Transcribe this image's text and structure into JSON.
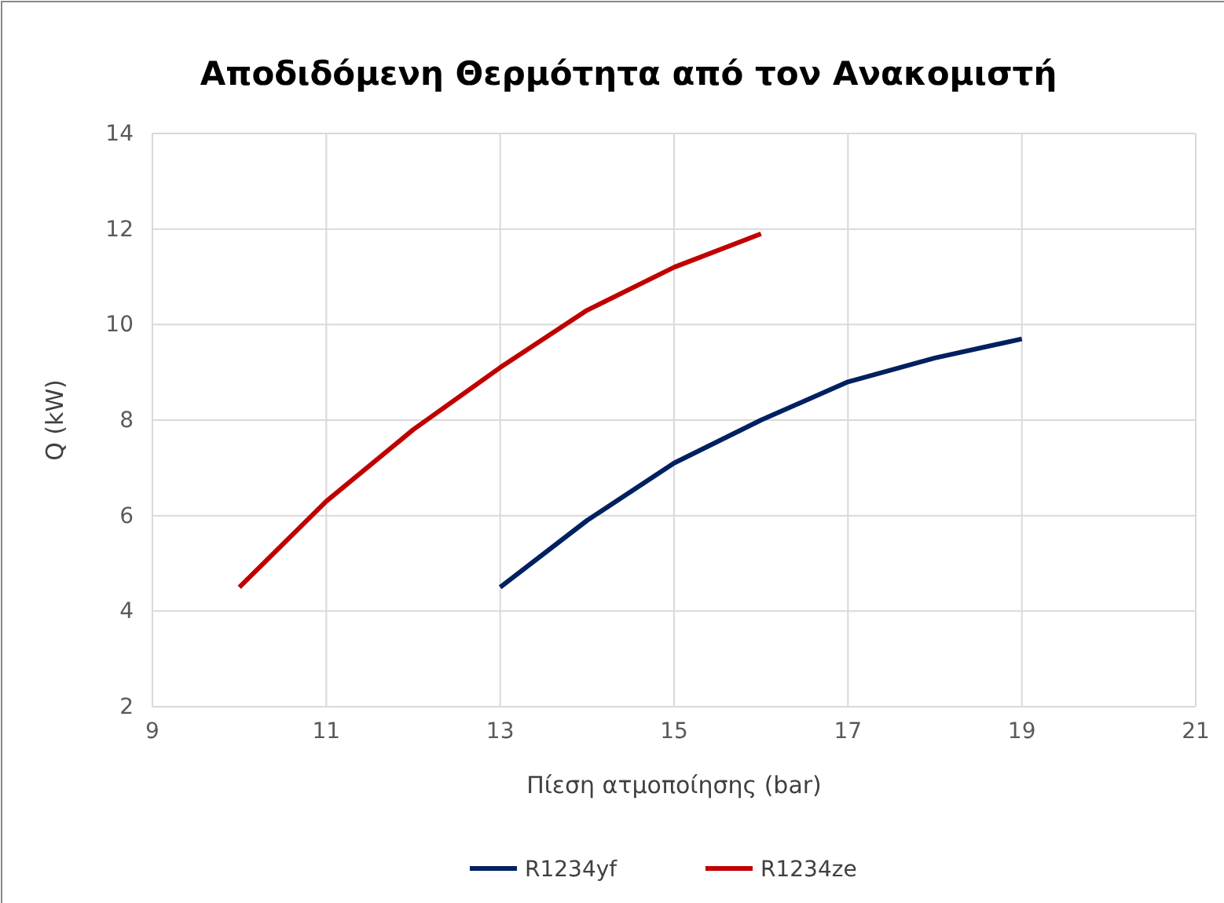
{
  "chart_data": {
    "type": "line",
    "title": "Αποδιδόμενη Θερμότητα από τον Ανακομιστή",
    "xlabel": "Πίεση ατμοποίησης (bar)",
    "ylabel": "Q (kW)",
    "series": [
      {
        "name": "R1234yf",
        "color": "#002060",
        "x": [
          13,
          14,
          15,
          16,
          17,
          18,
          19
        ],
        "values": [
          4.5,
          5.9,
          7.1,
          8.0,
          8.8,
          9.3,
          9.7
        ]
      },
      {
        "name": "R1234ze",
        "color": "#c00000",
        "x": [
          10,
          11,
          12,
          13,
          14,
          15,
          16
        ],
        "values": [
          4.5,
          6.3,
          7.8,
          9.1,
          10.3,
          11.2,
          11.9
        ]
      }
    ],
    "xlim": [
      9,
      21
    ],
    "xticks": [
      9,
      11,
      13,
      15,
      17,
      19,
      21
    ],
    "ylim": [
      2,
      14
    ],
    "yticks": [
      2,
      4,
      6,
      8,
      10,
      12,
      14
    ],
    "grid": true,
    "legend": "bottom",
    "marker": "none",
    "line_style": "solid"
  }
}
